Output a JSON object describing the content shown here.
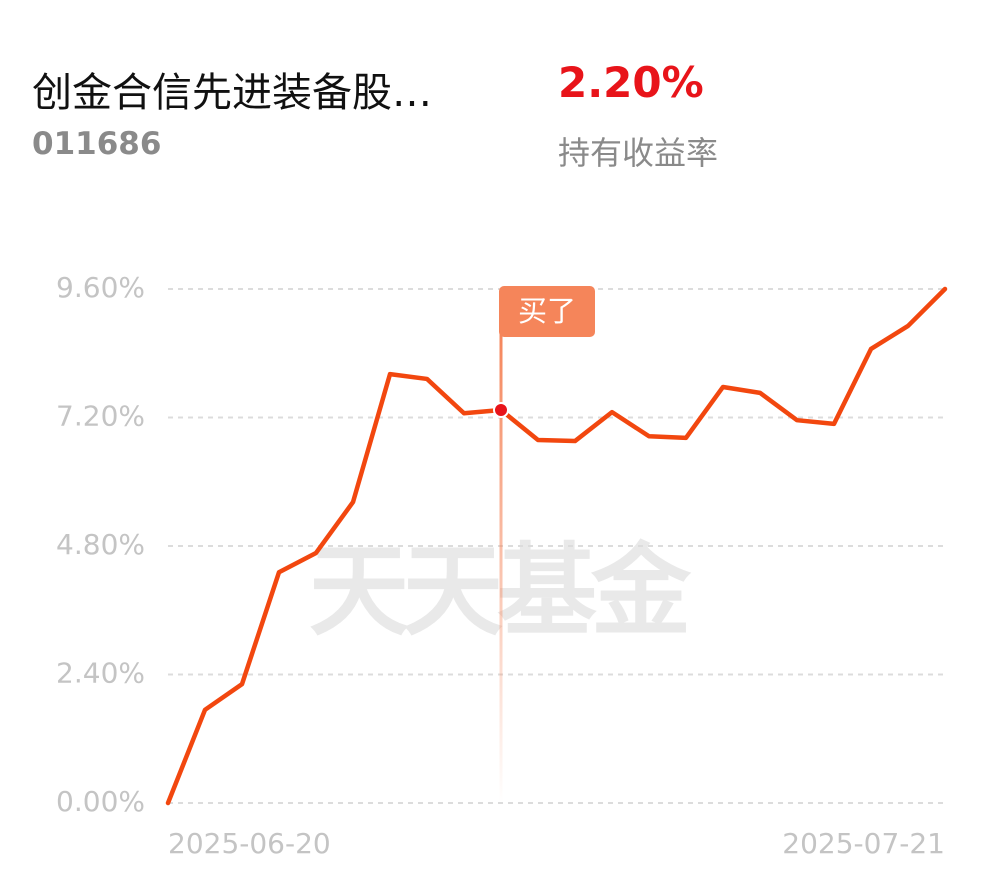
{
  "header": {
    "fund_name": "创金合信先进装备股…",
    "fund_code": "011686",
    "return_value": "2.20%",
    "return_label": "持有收益率"
  },
  "chart_data": {
    "type": "line",
    "watermark": "天天基金",
    "categories": [
      "2025-06-20",
      null,
      null,
      null,
      null,
      null,
      null,
      null,
      null,
      null,
      null,
      null,
      null,
      null,
      null,
      null,
      null,
      null,
      null,
      null,
      null,
      "2025-07-21"
    ],
    "series": [
      {
        "name": "持有收益率",
        "color": "#f2470f",
        "values": [
          0,
          1.74,
          2.22,
          4.31,
          4.67,
          5.62,
          8.01,
          7.92,
          7.28,
          7.34,
          6.78,
          6.76,
          7.3,
          6.85,
          6.82,
          7.77,
          7.66,
          7.15,
          7.08,
          8.48,
          8.91,
          9.6
        ]
      }
    ],
    "ylim": [
      0,
      9.6
    ],
    "yticks": [
      {
        "value": 0,
        "label": "0.00%"
      },
      {
        "value": 2.4,
        "label": "2.40%"
      },
      {
        "value": 4.8,
        "label": "4.80%"
      },
      {
        "value": 7.2,
        "label": "7.20%"
      },
      {
        "value": 9.6,
        "label": "9.60%"
      }
    ],
    "grid": true,
    "annotations": [
      {
        "text": "买了",
        "point": 9
      }
    ]
  }
}
